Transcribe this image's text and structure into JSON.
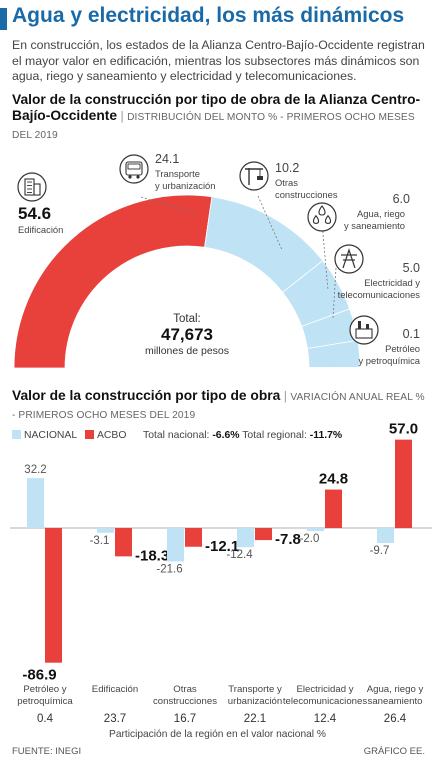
{
  "title": "Agua y electricidad, los más dinámicos",
  "intro": "En construcción, los estados de la Alianza Centro-Bajío-Occidente registran el mayor valor en edificación, mientras los subsectores más dinámicos son agua, riego y saneamiento y electricidad y telecomunicaciones.",
  "section1": {
    "title_bold": "Valor de la construcción por tipo de obra de la Alianza Centro-Bajío-Occidente",
    "title_sub": "DISTRIBUCIÓN DEL MONTO % - PRIMEROS OCHO MESES DEL 2019"
  },
  "section2": {
    "title_bold": "Valor de la construcción por tipo de obra",
    "title_sub": "VARIACIÓN ANUAL REAL % - PRIMEROS OCHO MESES DEL 2019"
  },
  "legend": {
    "nacional": "NACIONAL",
    "acbo": "ACBO",
    "total_nacional_label": "Total nacional:",
    "total_nacional_value": "-6.6%",
    "total_regional_label": "Total regional:",
    "total_regional_value": "-11.7%"
  },
  "participation_caption": "Participación de la región en el valor nacional %",
  "footer": {
    "source": "FUENTE: INEGI",
    "credit": "GRÁFICO EE."
  },
  "colors": {
    "acbo": "#e8413c",
    "nacional": "#bfe3f5",
    "title": "#1a6aa8",
    "icon": "#333333"
  },
  "chart_data": [
    {
      "type": "pie",
      "subtype": "half-donut",
      "total_label": "Total:",
      "total_value": "47,673",
      "total_unit": "millones de pesos",
      "slices": [
        {
          "label": "Edificación",
          "value": 54.6,
          "icon": "building-icon",
          "color": "#e8413c"
        },
        {
          "label": "Transporte y urbanización",
          "value": 24.1,
          "icon": "bus-icon",
          "color": "#bfe3f5"
        },
        {
          "label": "Otras construcciones",
          "value": 10.2,
          "icon": "crane-icon",
          "color": "#bfe3f5"
        },
        {
          "label": "Agua, riego y saneamiento",
          "value": 6.0,
          "icon": "water-drops-icon",
          "color": "#bfe3f5"
        },
        {
          "label": "Electricidad y telecomunicaciones",
          "value": 5.0,
          "icon": "power-tower-icon",
          "color": "#bfe3f5"
        },
        {
          "label": "Petróleo y petroquímica",
          "value": 0.1,
          "icon": "refinery-icon",
          "color": "#bfe3f5"
        }
      ]
    },
    {
      "type": "bar",
      "categories": [
        "Petróleo y petroquímica",
        "Edificación",
        "Otras construcciones",
        "Transporte y urbanización",
        "Electricidad y telecomunicaciones",
        "Agua, riego y saneamiento"
      ],
      "series": [
        {
          "name": "NACIONAL",
          "values": [
            32.2,
            -3.1,
            -21.6,
            -12.4,
            -2.0,
            -9.7
          ],
          "labels": [
            "32.2",
            "-3.1",
            "-21.6",
            "-12.4",
            "-2.0",
            "-9.7"
          ]
        },
        {
          "name": "ACBO",
          "values": [
            -86.9,
            -18.3,
            -12.1,
            -7.8,
            24.8,
            57.0
          ],
          "labels": [
            "-86.9",
            "-18.3",
            "-12.1",
            "-7.8",
            "24.8",
            "57.0"
          ]
        }
      ],
      "participation": [
        "0.4",
        "23.7",
        "16.7",
        "22.1",
        "12.4",
        "26.4"
      ]
    }
  ]
}
